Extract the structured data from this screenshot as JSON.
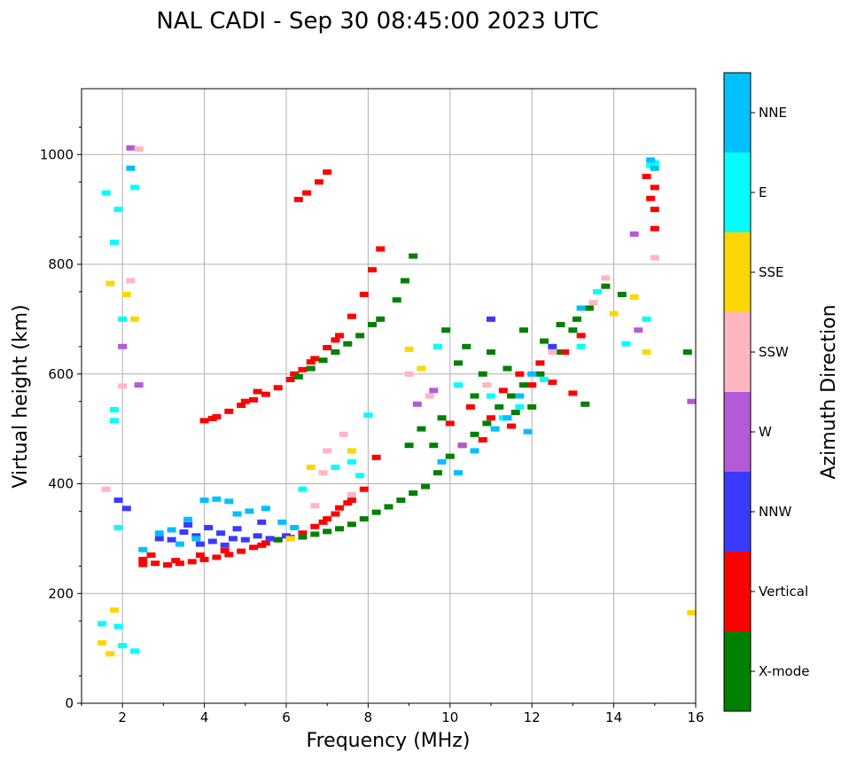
{
  "chart_data": {
    "type": "scatter",
    "title": "NAL CADI - Sep 30 08:45:00 2023 UTC",
    "xlabel": "Frequency (MHz)",
    "ylabel": "Virtual height (km)",
    "xlim": [
      1,
      16
    ],
    "ylim": [
      0,
      1120
    ],
    "xticks": [
      2,
      4,
      6,
      8,
      10,
      12,
      14,
      16
    ],
    "yticks": [
      0,
      200,
      400,
      600,
      800,
      1000
    ],
    "grid": true,
    "colorbar": {
      "label": "Azimuth Direction",
      "categories": [
        {
          "name": "X-mode",
          "color": "#008000"
        },
        {
          "name": "Vertical",
          "color": "#ff0000"
        },
        {
          "name": "NNW",
          "color": "#3a3aff"
        },
        {
          "name": "W",
          "color": "#b35ad6"
        },
        {
          "name": "SSW",
          "color": "#ffb6c1"
        },
        {
          "name": "SSE",
          "color": "#ffd700"
        },
        {
          "name": "E",
          "color": "#00ffff"
        },
        {
          "name": "NNE",
          "color": "#00bfff"
        }
      ]
    },
    "series": [
      {
        "name": "Vertical",
        "cat": "Vertical",
        "points": [
          [
            2.5,
            262
          ],
          [
            2.8,
            255
          ],
          [
            3.1,
            252
          ],
          [
            3.4,
            255
          ],
          [
            3.7,
            258
          ],
          [
            4.0,
            262
          ],
          [
            4.3,
            266
          ],
          [
            4.6,
            271
          ],
          [
            4.9,
            277
          ],
          [
            5.2,
            284
          ],
          [
            5.5,
            292
          ],
          [
            5.8,
            298
          ],
          [
            6.1,
            302
          ],
          [
            6.4,
            310
          ],
          [
            6.7,
            322
          ],
          [
            7.0,
            336
          ],
          [
            7.3,
            356
          ],
          [
            7.6,
            370
          ],
          [
            7.9,
            390
          ],
          [
            8.2,
            448
          ],
          [
            2.7,
            270
          ],
          [
            3.3,
            260
          ],
          [
            3.9,
            270
          ],
          [
            4.5,
            278
          ],
          [
            5.4,
            288
          ],
          [
            6.9,
            330
          ],
          [
            7.2,
            345
          ],
          [
            7.5,
            365
          ],
          [
            4.0,
            515
          ],
          [
            4.3,
            522
          ],
          [
            4.6,
            532
          ],
          [
            4.9,
            543
          ],
          [
            5.2,
            553
          ],
          [
            5.5,
            563
          ],
          [
            5.8,
            575
          ],
          [
            6.1,
            590
          ],
          [
            6.4,
            608
          ],
          [
            6.7,
            628
          ],
          [
            7.0,
            648
          ],
          [
            7.3,
            670
          ],
          [
            7.6,
            705
          ],
          [
            7.9,
            745
          ],
          [
            8.1,
            790
          ],
          [
            8.3,
            828
          ],
          [
            6.5,
            930
          ],
          [
            6.8,
            950
          ],
          [
            7.0,
            968
          ],
          [
            6.3,
            918
          ],
          [
            5.3,
            568
          ],
          [
            5.0,
            550
          ],
          [
            4.2,
            519
          ],
          [
            6.2,
            600
          ],
          [
            6.6,
            622
          ],
          [
            7.2,
            662
          ],
          [
            10.0,
            510
          ],
          [
            10.5,
            540
          ],
          [
            11.0,
            520
          ],
          [
            11.3,
            570
          ],
          [
            11.7,
            600
          ],
          [
            12.0,
            580
          ],
          [
            12.2,
            620
          ],
          [
            10.8,
            480
          ],
          [
            11.5,
            505
          ],
          [
            12.8,
            640
          ],
          [
            13.2,
            670
          ],
          [
            13.0,
            565
          ],
          [
            12.5,
            585
          ],
          [
            14.8,
            960
          ],
          [
            15.0,
            940
          ],
          [
            14.9,
            920
          ],
          [
            15.0,
            900
          ],
          [
            15.0,
            865
          ],
          [
            2.5,
            253
          ]
        ]
      },
      {
        "name": "X-mode",
        "cat": "X-mode",
        "points": [
          [
            5.8,
            298
          ],
          [
            6.1,
            300
          ],
          [
            6.4,
            303
          ],
          [
            6.7,
            308
          ],
          [
            7.0,
            313
          ],
          [
            7.3,
            318
          ],
          [
            7.6,
            326
          ],
          [
            7.9,
            336
          ],
          [
            8.2,
            348
          ],
          [
            8.5,
            358
          ],
          [
            8.8,
            370
          ],
          [
            9.1,
            383
          ],
          [
            9.4,
            395
          ],
          [
            9.7,
            420
          ],
          [
            10.0,
            450
          ],
          [
            10.3,
            470
          ],
          [
            10.6,
            490
          ],
          [
            10.9,
            510
          ],
          [
            11.2,
            540
          ],
          [
            11.5,
            560
          ],
          [
            11.8,
            580
          ],
          [
            12.2,
            600
          ],
          [
            12.6,
            640
          ],
          [
            13.0,
            680
          ],
          [
            13.4,
            720
          ],
          [
            13.8,
            760
          ],
          [
            14.2,
            745
          ],
          [
            6.3,
            595
          ],
          [
            6.6,
            610
          ],
          [
            6.9,
            625
          ],
          [
            7.2,
            640
          ],
          [
            7.5,
            655
          ],
          [
            7.8,
            670
          ],
          [
            8.1,
            690
          ],
          [
            8.3,
            700
          ],
          [
            8.7,
            735
          ],
          [
            8.9,
            770
          ],
          [
            9.1,
            815
          ],
          [
            9.0,
            470
          ],
          [
            9.3,
            500
          ],
          [
            9.6,
            470
          ],
          [
            9.9,
            680
          ],
          [
            10.2,
            620
          ],
          [
            10.6,
            560
          ],
          [
            11.0,
            640
          ],
          [
            11.4,
            610
          ],
          [
            11.8,
            680
          ],
          [
            12.3,
            660
          ],
          [
            12.7,
            690
          ],
          [
            13.1,
            700
          ],
          [
            13.3,
            545
          ],
          [
            10.4,
            650
          ],
          [
            12.0,
            540
          ],
          [
            9.8,
            520
          ],
          [
            10.8,
            600
          ],
          [
            11.6,
            530
          ],
          [
            15.8,
            640
          ]
        ]
      },
      {
        "name": "NNW",
        "cat": "NNW",
        "points": [
          [
            2.9,
            300
          ],
          [
            3.2,
            298
          ],
          [
            3.5,
            312
          ],
          [
            3.8,
            305
          ],
          [
            4.1,
            320
          ],
          [
            4.4,
            310
          ],
          [
            4.7,
            300
          ],
          [
            5.0,
            298
          ],
          [
            5.3,
            305
          ],
          [
            5.6,
            300
          ],
          [
            4.2,
            295
          ],
          [
            3.6,
            325
          ],
          [
            4.8,
            318
          ],
          [
            5.4,
            330
          ],
          [
            3.9,
            290
          ],
          [
            4.5,
            288
          ],
          [
            6.0,
            305
          ],
          [
            1.9,
            370
          ],
          [
            2.1,
            355
          ],
          [
            11.0,
            700
          ],
          [
            12.5,
            650
          ]
        ]
      },
      {
        "name": "W",
        "cat": "W",
        "points": [
          [
            2.2,
            1012
          ],
          [
            2.0,
            650
          ],
          [
            9.2,
            545
          ],
          [
            9.6,
            570
          ],
          [
            10.3,
            470
          ],
          [
            14.6,
            680
          ],
          [
            14.5,
            855
          ],
          [
            15.9,
            550
          ],
          [
            2.4,
            580
          ]
        ]
      },
      {
        "name": "SSW",
        "cat": "SSW",
        "points": [
          [
            2.4,
            1010
          ],
          [
            6.9,
            420
          ],
          [
            7.0,
            460
          ],
          [
            7.4,
            490
          ],
          [
            7.6,
            380
          ],
          [
            6.7,
            360
          ],
          [
            9.0,
            600
          ],
          [
            9.5,
            560
          ],
          [
            10.9,
            580
          ],
          [
            12.5,
            640
          ],
          [
            13.8,
            775
          ],
          [
            13.5,
            730
          ],
          [
            15.0,
            812
          ],
          [
            2.0,
            578
          ],
          [
            2.2,
            770
          ],
          [
            1.6,
            390
          ]
        ]
      },
      {
        "name": "SSE",
        "cat": "SSE",
        "points": [
          [
            1.7,
            765
          ],
          [
            2.1,
            745
          ],
          [
            1.5,
            110
          ],
          [
            1.7,
            90
          ],
          [
            1.8,
            170
          ],
          [
            6.1,
            300
          ],
          [
            6.6,
            430
          ],
          [
            7.6,
            460
          ],
          [
            9.0,
            645
          ],
          [
            9.3,
            610
          ],
          [
            14.0,
            710
          ],
          [
            14.5,
            740
          ],
          [
            14.8,
            640
          ],
          [
            15.9,
            165
          ],
          [
            2.3,
            700
          ]
        ]
      },
      {
        "name": "E",
        "cat": "E",
        "points": [
          [
            1.8,
            840
          ],
          [
            1.9,
            900
          ],
          [
            1.6,
            930
          ],
          [
            2.3,
            940
          ],
          [
            1.8,
            515
          ],
          [
            1.8,
            535
          ],
          [
            1.9,
            140
          ],
          [
            2.0,
            105
          ],
          [
            2.3,
            95
          ],
          [
            1.5,
            145
          ],
          [
            8.0,
            525
          ],
          [
            7.6,
            440
          ],
          [
            7.2,
            430
          ],
          [
            9.7,
            650
          ],
          [
            10.2,
            580
          ],
          [
            11.0,
            560
          ],
          [
            11.3,
            520
          ],
          [
            11.7,
            540
          ],
          [
            12.3,
            590
          ],
          [
            13.2,
            650
          ],
          [
            13.6,
            750
          ],
          [
            14.3,
            655
          ],
          [
            14.8,
            700
          ],
          [
            15.0,
            985
          ],
          [
            14.9,
            980
          ],
          [
            6.4,
            390
          ],
          [
            7.8,
            415
          ],
          [
            2.0,
            700
          ],
          [
            1.9,
            320
          ]
        ]
      },
      {
        "name": "NNE",
        "cat": "NNE",
        "points": [
          [
            2.5,
            280
          ],
          [
            2.9,
            310
          ],
          [
            3.2,
            316
          ],
          [
            3.6,
            335
          ],
          [
            4.0,
            370
          ],
          [
            4.3,
            372
          ],
          [
            4.6,
            368
          ],
          [
            4.8,
            345
          ],
          [
            5.1,
            350
          ],
          [
            5.5,
            355
          ],
          [
            5.9,
            330
          ],
          [
            6.2,
            320
          ],
          [
            3.4,
            290
          ],
          [
            3.8,
            300
          ],
          [
            10.2,
            420
          ],
          [
            10.6,
            460
          ],
          [
            11.1,
            500
          ],
          [
            11.4,
            520
          ],
          [
            11.7,
            560
          ],
          [
            12.0,
            600
          ],
          [
            13.2,
            720
          ],
          [
            14.9,
            990
          ],
          [
            15.0,
            975
          ],
          [
            2.2,
            975
          ],
          [
            9.8,
            440
          ],
          [
            11.9,
            495
          ]
        ]
      }
    ]
  }
}
